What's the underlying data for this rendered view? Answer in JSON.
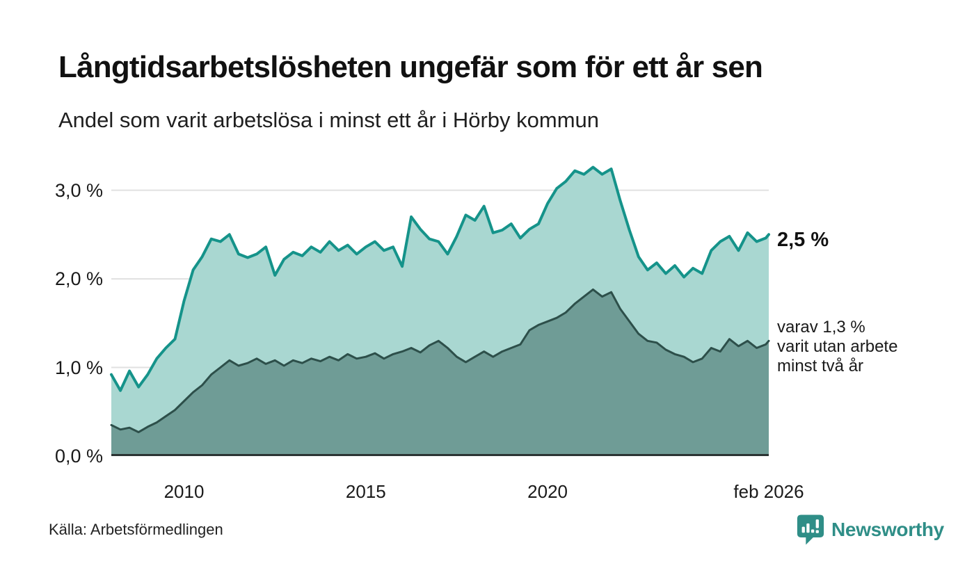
{
  "header": {
    "title": "Långtidsarbetslösheten ungefär som för ett år sen",
    "subtitle": "Andel som varit arbetslösa i minst ett år i Hörby kommun"
  },
  "chart_data": {
    "type": "area",
    "title": "Långtidsarbetslösheten ungefär som för ett år sen",
    "subtitle": "Andel som varit arbetslösa i minst ett år i Hörby kommun",
    "unit": "%",
    "grid": "horizontal",
    "legend_position": "right-edge-annotations",
    "xlim": [
      2008.0,
      2026.083
    ],
    "ylim": [
      0,
      3.35
    ],
    "yticks": [
      {
        "value": 0,
        "label": "0,0 %"
      },
      {
        "value": 1,
        "label": "1,0 %"
      },
      {
        "value": 2,
        "label": "2,0 %"
      },
      {
        "value": 3,
        "label": "3,0 %"
      }
    ],
    "xticks": [
      {
        "value": 2010,
        "label": "2010"
      },
      {
        "value": 2015,
        "label": "2015"
      },
      {
        "value": 2020,
        "label": "2020"
      },
      {
        "value": 2026.083,
        "label": "feb 2026"
      }
    ],
    "colors": {
      "grid": "#e0e0e0",
      "baseline": "#2b3433",
      "series1_line": "#15938a",
      "series1_fill": "#a9d7d1",
      "series2_line": "#2d4f4a",
      "series2_fill": "#6f9c96"
    },
    "x": [
      2008.0,
      2008.25,
      2008.5,
      2008.75,
      2009.0,
      2009.25,
      2009.5,
      2009.75,
      2010.0,
      2010.25,
      2010.5,
      2010.75,
      2011.0,
      2011.25,
      2011.5,
      2011.75,
      2012.0,
      2012.25,
      2012.5,
      2012.75,
      2013.0,
      2013.25,
      2013.5,
      2013.75,
      2014.0,
      2014.25,
      2014.5,
      2014.75,
      2015.0,
      2015.25,
      2015.5,
      2015.75,
      2016.0,
      2016.25,
      2016.5,
      2016.75,
      2017.0,
      2017.25,
      2017.5,
      2017.75,
      2018.0,
      2018.25,
      2018.5,
      2018.75,
      2019.0,
      2019.25,
      2019.5,
      2019.75,
      2020.0,
      2020.25,
      2020.5,
      2020.75,
      2021.0,
      2021.25,
      2021.5,
      2021.75,
      2022.0,
      2022.25,
      2022.5,
      2022.75,
      2023.0,
      2023.25,
      2023.5,
      2023.75,
      2024.0,
      2024.25,
      2024.5,
      2024.75,
      2025.0,
      2025.25,
      2025.5,
      2025.75,
      2026.0,
      2026.083
    ],
    "series": [
      {
        "name": "Andel som varit arbetslösa i minst ett år",
        "line_color": "#15938a",
        "fill_color": "#a9d7d1",
        "line_width": 4,
        "latest_label": "2,5 %",
        "values": [
          0.92,
          0.74,
          0.96,
          0.78,
          0.92,
          1.1,
          1.22,
          1.32,
          1.75,
          2.1,
          2.25,
          2.45,
          2.42,
          2.5,
          2.28,
          2.24,
          2.28,
          2.36,
          2.04,
          2.22,
          2.3,
          2.26,
          2.36,
          2.3,
          2.42,
          2.32,
          2.38,
          2.28,
          2.36,
          2.42,
          2.32,
          2.36,
          2.14,
          2.7,
          2.56,
          2.45,
          2.42,
          2.28,
          2.48,
          2.72,
          2.66,
          2.82,
          2.52,
          2.55,
          2.62,
          2.46,
          2.56,
          2.62,
          2.85,
          3.02,
          3.1,
          3.22,
          3.18,
          3.26,
          3.18,
          3.24,
          2.88,
          2.55,
          2.25,
          2.1,
          2.18,
          2.06,
          2.15,
          2.02,
          2.12,
          2.06,
          2.32,
          2.42,
          2.48,
          2.32,
          2.52,
          2.42,
          2.46,
          2.5
        ]
      },
      {
        "name": "varav varit utan arbete minst två år",
        "line_color": "#2d4f4a",
        "fill_color": "#6f9c96",
        "line_width": 3,
        "latest_label": "varav 1,3 % varit utan arbete minst två år",
        "values": [
          0.35,
          0.3,
          0.32,
          0.27,
          0.33,
          0.38,
          0.45,
          0.52,
          0.62,
          0.72,
          0.8,
          0.92,
          1.0,
          1.08,
          1.02,
          1.05,
          1.1,
          1.04,
          1.08,
          1.02,
          1.08,
          1.05,
          1.1,
          1.07,
          1.12,
          1.08,
          1.15,
          1.1,
          1.12,
          1.16,
          1.1,
          1.15,
          1.18,
          1.22,
          1.17,
          1.25,
          1.3,
          1.22,
          1.12,
          1.06,
          1.12,
          1.18,
          1.12,
          1.18,
          1.22,
          1.26,
          1.42,
          1.48,
          1.52,
          1.56,
          1.62,
          1.72,
          1.8,
          1.88,
          1.8,
          1.85,
          1.66,
          1.52,
          1.38,
          1.3,
          1.28,
          1.2,
          1.15,
          1.12,
          1.06,
          1.1,
          1.22,
          1.18,
          1.32,
          1.24,
          1.3,
          1.22,
          1.26,
          1.3
        ]
      }
    ]
  },
  "annotations": {
    "latest_value": "2,5 %",
    "secondary_lines": [
      "varav 1,3 %",
      "varit utan arbete",
      "minst två år"
    ]
  },
  "footer": {
    "source": "Källa: Arbetsförmedlingen",
    "brand": "Newsworthy",
    "brand_color": "#2f8e87"
  }
}
